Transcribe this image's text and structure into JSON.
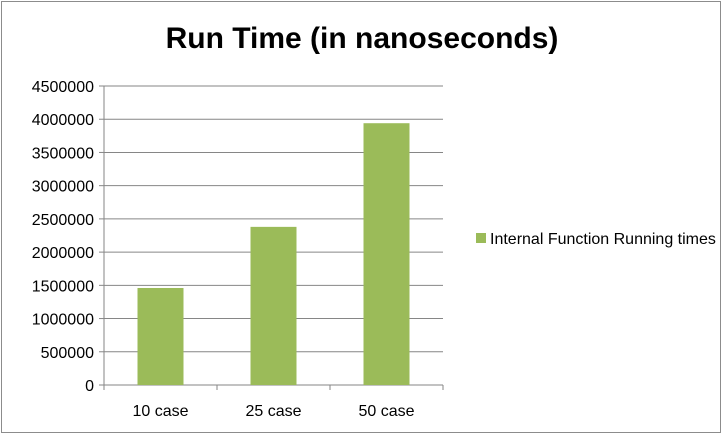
{
  "chart_data": {
    "type": "bar",
    "title": "Run Time (in nanoseconds)",
    "categories": [
      "10 case",
      "25 case",
      "50 case"
    ],
    "series": [
      {
        "name": "Internal Function Running times",
        "values": [
          1460000,
          2380000,
          3940000
        ]
      }
    ],
    "ylim": [
      0,
      4500000
    ],
    "yticks": [
      "0",
      "500000",
      "1000000",
      "1500000",
      "2000000",
      "2500000",
      "3000000",
      "3500000",
      "4000000",
      "4500000"
    ],
    "grid": true,
    "legend_position": "right",
    "colors": {
      "bar": "#9bbb59",
      "grid": "#868686",
      "axis": "#868686",
      "border": "#8c8c8c"
    }
  }
}
